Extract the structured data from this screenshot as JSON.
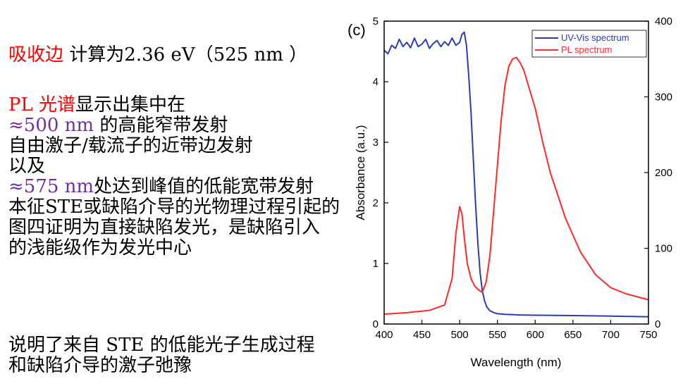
{
  "notes": {
    "line1": {
      "red": "吸收边",
      "rest": " 计算为2.36 eV（525 nm ）"
    },
    "line2": {
      "red": "PL 光谱",
      "rest": "显示出集中在"
    },
    "line3": {
      "purple": " ≈500 nm",
      "rest": " 的高能窄带发射"
    },
    "line4": "自由激子/载流子的近带边发射",
    "line5": "以及",
    "line6": {
      "purple": "≈575 nm",
      "rest": "处达到峰值的低能宽带发射"
    },
    "line7": "本征STE或缺陷介导的光物理过程引起的",
    "line8": "图四证明为直接缺陷发光，是缺陷引入",
    "line9": "的浅能级作为发光中心",
    "line10": "说明了来自 STE 的低能光子生成过程",
    "line11": "和缺陷介导的激子弛豫"
  },
  "chart_data": {
    "type": "line",
    "panel_label": "(c)",
    "xlabel": "Wavelength (nm)",
    "ylabel_left": "Absorbance (a.u.)",
    "xlim": [
      400,
      750
    ],
    "ylim_left": [
      0,
      5
    ],
    "ylim_right": [
      0,
      400
    ],
    "x_ticks": [
      "400",
      "450",
      "500",
      "550",
      "600",
      "650",
      "700",
      "750"
    ],
    "y_left_ticks": [
      "0",
      "1",
      "2",
      "3",
      "4",
      "5"
    ],
    "y_right_ticks": [
      "0",
      "100",
      "200",
      "300",
      "400"
    ],
    "legend": {
      "position": "top-right"
    },
    "series": [
      {
        "name": "UV-Vis spectrum",
        "color": "#2a3cb5",
        "axis": "left",
        "x": [
          400,
          405,
          410,
          415,
          420,
          425,
          430,
          435,
          440,
          445,
          450,
          455,
          460,
          465,
          470,
          475,
          480,
          485,
          490,
          495,
          500,
          503,
          506,
          509,
          512,
          515,
          518,
          521,
          524,
          527,
          530,
          533,
          536,
          540,
          545,
          550,
          560,
          580,
          600,
          650,
          700,
          750
        ],
        "y": [
          4.52,
          4.46,
          4.6,
          4.55,
          4.7,
          4.58,
          4.65,
          4.56,
          4.72,
          4.58,
          4.62,
          4.7,
          4.55,
          4.63,
          4.68,
          4.58,
          4.66,
          4.6,
          4.72,
          4.6,
          4.65,
          4.78,
          4.82,
          4.6,
          4.1,
          3.5,
          2.75,
          2.0,
          1.35,
          0.85,
          0.55,
          0.38,
          0.28,
          0.22,
          0.19,
          0.17,
          0.16,
          0.15,
          0.145,
          0.14,
          0.13,
          0.12
        ]
      },
      {
        "name": "PL spectrum",
        "color": "#ff2a2a",
        "axis": "right",
        "x": [
          400,
          430,
          460,
          480,
          490,
          495,
          500,
          503,
          506,
          510,
          515,
          520,
          525,
          530,
          535,
          540,
          545,
          550,
          555,
          560,
          565,
          570,
          575,
          580,
          585,
          590,
          600,
          610,
          620,
          640,
          660,
          680,
          700,
          720,
          750
        ],
        "y": [
          13,
          15,
          18,
          25,
          60,
          120,
          155,
          145,
          115,
          80,
          60,
          50,
          45,
          42,
          55,
          90,
          150,
          210,
          270,
          315,
          340,
          350,
          352,
          345,
          335,
          318,
          285,
          240,
          200,
          140,
          95,
          65,
          48,
          40,
          32
        ]
      }
    ]
  }
}
